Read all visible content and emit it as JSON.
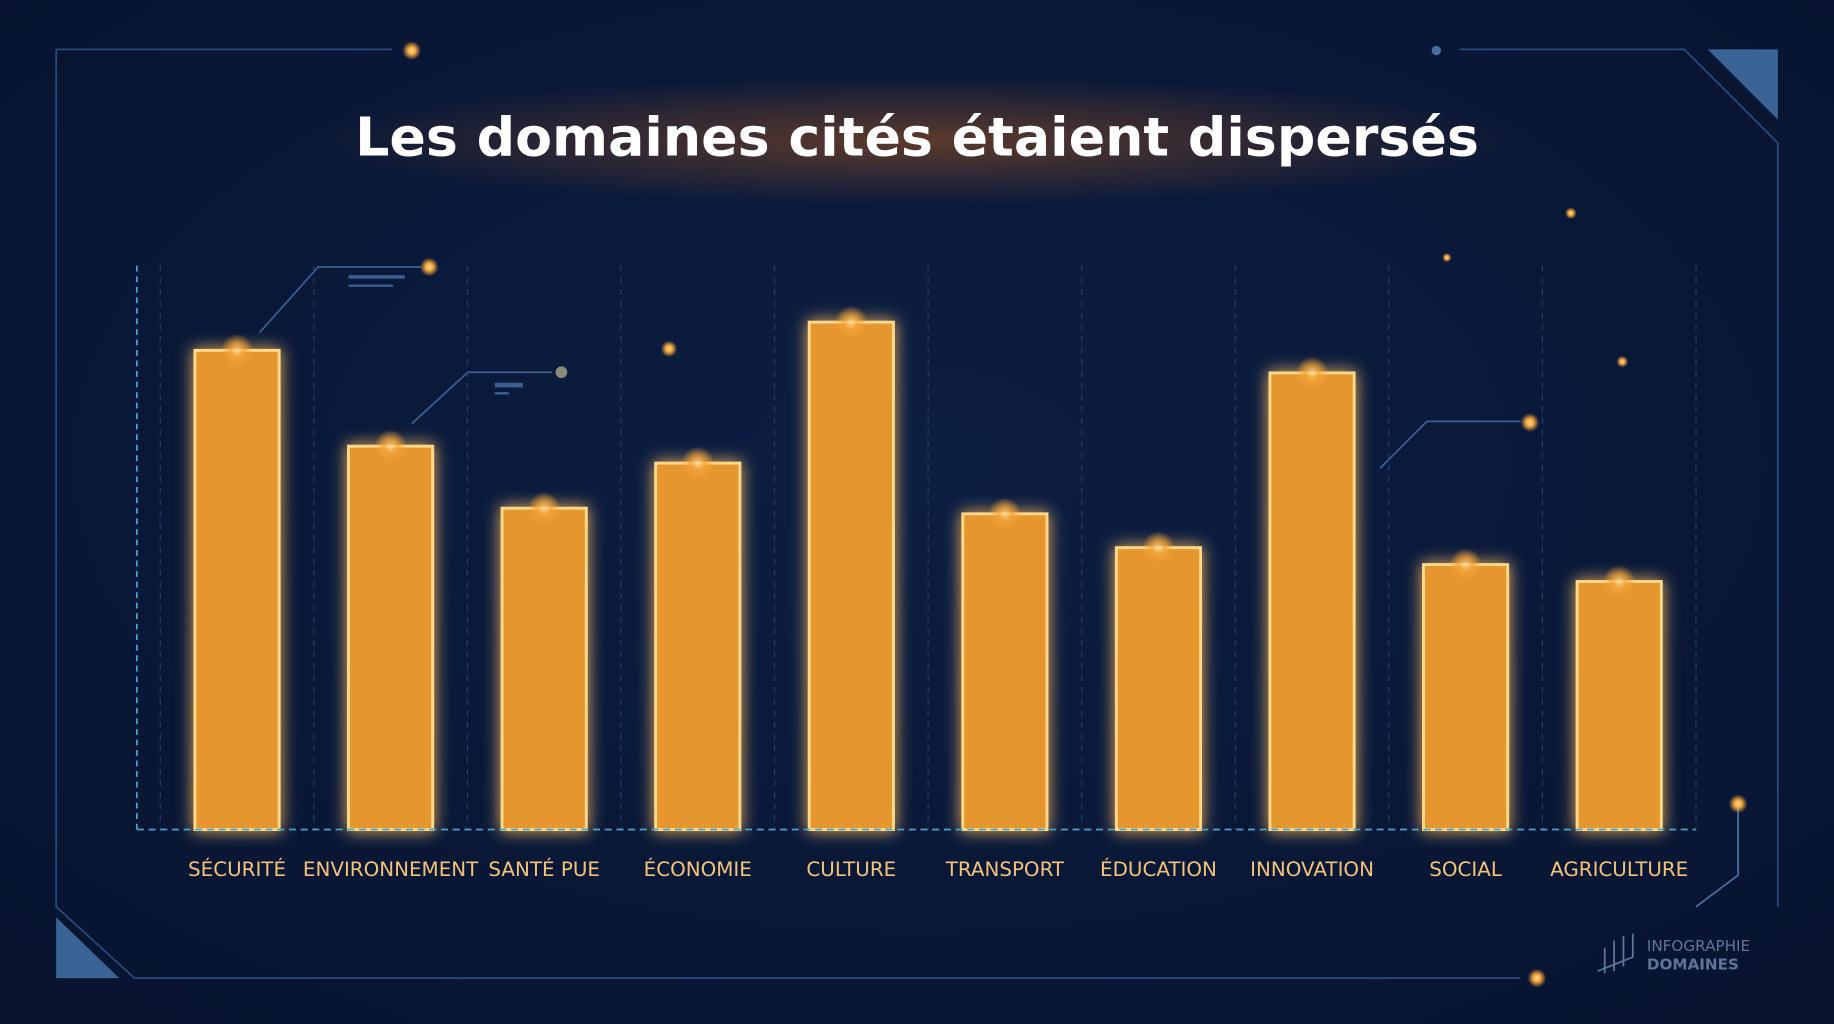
{
  "chart_data": {
    "type": "bar",
    "title": "Les domaines cités étaient dispersés",
    "categories": [
      "SÉCURITÉ",
      "ENVIRONNEMENT",
      "SANTÉ PUE",
      "ÉCONOMIE",
      "CULTURE",
      "TRANSPORT",
      "ÉDUCATION",
      "INNOVATION",
      "SOCIAL",
      "AGRICULTURE"
    ],
    "values": [
      85,
      68,
      57,
      65,
      90,
      56,
      50,
      81,
      47,
      44
    ],
    "color": "#e6962f",
    "ylim": [
      0,
      100
    ]
  },
  "brand": [
    "INFOGRAPHIE",
    "DOMAINES"
  ]
}
